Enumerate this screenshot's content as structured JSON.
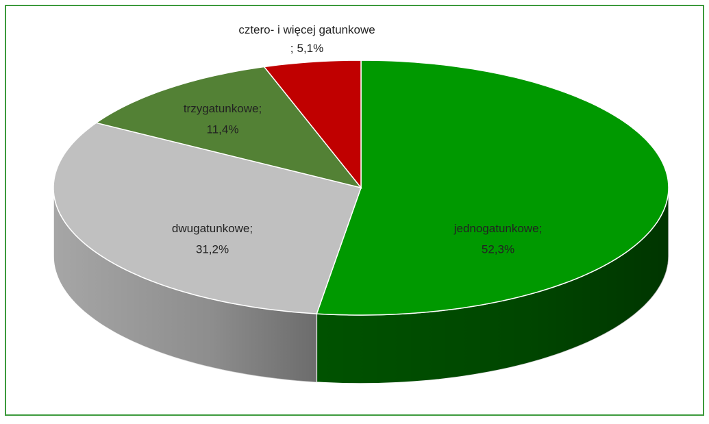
{
  "chart_data": {
    "type": "pie3d",
    "categories": [
      "jednogatunkowe",
      "dwugatunkowe",
      "trzygatunkowe",
      "cztero- i więcej gatunkowe"
    ],
    "values": [
      52.3,
      31.2,
      11.4,
      5.1
    ],
    "value_labels": [
      "52,3%",
      "31,2%",
      "11,4%",
      "5,1%"
    ],
    "label_separator": ";",
    "colors": [
      "#009900",
      "#c0c0c0",
      "#538135",
      "#c00000"
    ],
    "side_colors": [
      "#005200",
      "#a6a6a6",
      "#3a5a25",
      "#8a0000"
    ]
  }
}
